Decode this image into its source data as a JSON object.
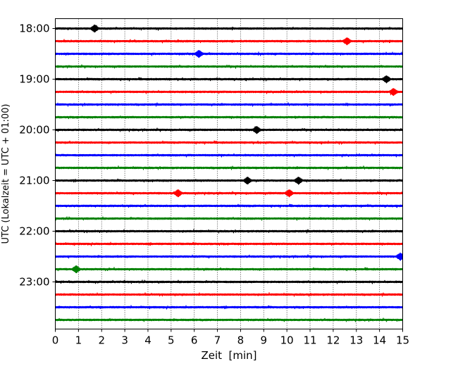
{
  "chart_data": {
    "type": "line",
    "subtype": "helicorder",
    "xlabel": "Zeit  [min]",
    "ylabel": "UTC (Lokalzeit = UTC + 01:00)",
    "xlim": [
      0,
      15
    ],
    "x_ticks": [
      0,
      1,
      2,
      3,
      4,
      5,
      6,
      7,
      8,
      9,
      10,
      11,
      12,
      13,
      14,
      15
    ],
    "y_tick_labels": [
      "18:00",
      "19:00",
      "20:00",
      "21:00",
      "22:00",
      "23:00"
    ],
    "grid": "vertical dotted",
    "trace_interval_min": 15,
    "trace_start": "18:00",
    "trace_count": 24,
    "trace_colors": [
      "#000000",
      "#ff0000",
      "#0000ff",
      "#008000"
    ],
    "events": [
      {
        "trace": 0,
        "minute": 1.7
      },
      {
        "trace": 1,
        "minute": 12.6
      },
      {
        "trace": 2,
        "minute": 6.2
      },
      {
        "trace": 4,
        "minute": 14.3
      },
      {
        "trace": 5,
        "minute": 14.6
      },
      {
        "trace": 8,
        "minute": 8.7
      },
      {
        "trace": 12,
        "minute": 8.3
      },
      {
        "trace": 12,
        "minute": 10.5
      },
      {
        "trace": 13,
        "minute": 10.1
      },
      {
        "trace": 13,
        "minute": 5.3
      },
      {
        "trace": 18,
        "minute": 14.9
      },
      {
        "trace": 19,
        "minute": 0.9
      }
    ]
  }
}
